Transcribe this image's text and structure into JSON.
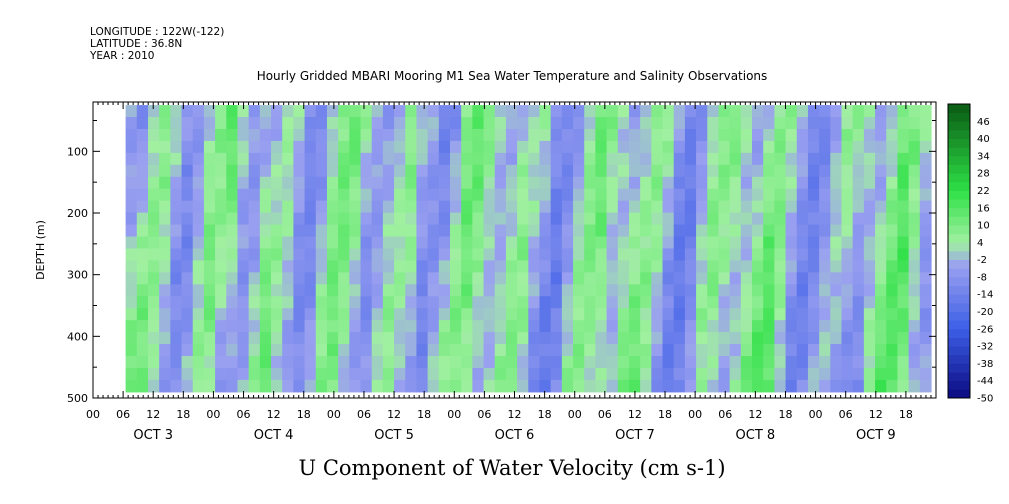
{
  "header": {
    "longitude": "LONGITUDE : 122W(-122)",
    "latitude": "LATITUDE : 36.8N",
    "year": "YEAR : 2010"
  },
  "chart_data": {
    "type": "heatmap",
    "title": "Hourly Gridded MBARI Mooring M1 Sea Water Temperature and Salinity Observations",
    "bottom_title": "U Component of Water Velocity (cm s-1)",
    "ylabel": "DEPTH (m)",
    "y_ticks": [
      "500",
      "400",
      "300",
      "200",
      "100"
    ],
    "y_tick_values": [
      500,
      400,
      300,
      200,
      100
    ],
    "ylim": [
      500,
      20
    ],
    "x_hour_ticks": [
      "00",
      "06",
      "12",
      "18",
      "00",
      "06",
      "12",
      "18",
      "00",
      "06",
      "12",
      "18",
      "00",
      "06",
      "12",
      "18",
      "00",
      "06",
      "12",
      "18",
      "00",
      "06",
      "12",
      "18",
      "00",
      "06",
      "12",
      "18"
    ],
    "x_day_labels": [
      "OCT 3",
      "OCT 4",
      "OCT 5",
      "OCT 6",
      "OCT 7",
      "OCT 8",
      "OCT 9"
    ],
    "x_start": "2010-10-03 00:00",
    "x_end": "2010-10-10 00:00",
    "data_depth_range": [
      25,
      490
    ],
    "colorbar": {
      "labels": [
        "46",
        "40",
        "34",
        "28",
        "22",
        "16",
        "10",
        "4",
        "-2",
        "-8",
        "-14",
        "-20",
        "-26",
        "-32",
        "-38",
        "-44",
        "-50"
      ],
      "min": -50,
      "max": 52,
      "step": 3
    },
    "colors": {
      "strong_positive": "#0a5a14",
      "positive": "#2ee046",
      "weak_positive": "#a0f0a0",
      "weak_negative": "#9aa0f0",
      "negative": "#3c5ee6",
      "strong_negative": "#0a0a80"
    }
  }
}
